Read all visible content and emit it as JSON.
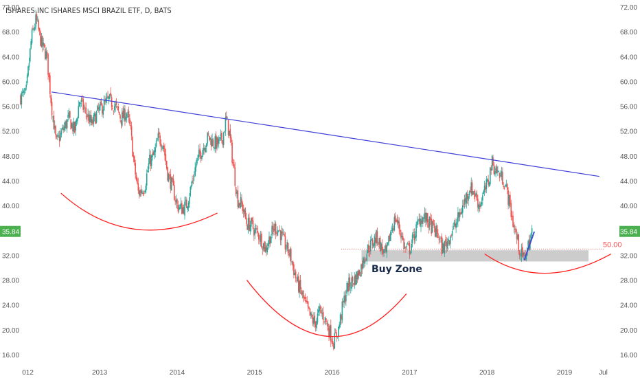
{
  "header": {
    "title": "ISHARES INC ISHARES MSCI BRAZIL ETF, D, BATS"
  },
  "chart_data": {
    "type": "candlestick",
    "title": "ISHARES INC ISHARES MSCI BRAZIL ETF, D, BATS",
    "ylim": [
      15,
      72
    ],
    "y_ticks": [
      "16.00",
      "20.00",
      "24.00",
      "28.00",
      "32.00",
      "36.00",
      "40.00",
      "44.00",
      "48.00",
      "52.00",
      "56.00",
      "60.00",
      "64.00",
      "68.00",
      "72.00"
    ],
    "x_ticks": [
      "012",
      "2013",
      "2014",
      "2015",
      "2016",
      "2017",
      "2018",
      "2019",
      "Jul"
    ],
    "x_tick_pos": [
      2012.0,
      2013.0,
      2014.0,
      2015.0,
      2016.0,
      2017.0,
      2018.0,
      2019.0,
      2019.5
    ],
    "xlim": [
      2011.98,
      2019.62
    ],
    "price_path": [
      [
        2011.98,
        57.5
      ],
      [
        2012.05,
        58
      ],
      [
        2012.12,
        67
      ],
      [
        2012.18,
        70
      ],
      [
        2012.25,
        66
      ],
      [
        2012.32,
        64
      ],
      [
        2012.38,
        56
      ],
      [
        2012.44,
        50
      ],
      [
        2012.52,
        52
      ],
      [
        2012.6,
        54
      ],
      [
        2012.68,
        52
      ],
      [
        2012.74,
        57
      ],
      [
        2012.82,
        55
      ],
      [
        2012.9,
        53
      ],
      [
        2012.97,
        55
      ],
      [
        2013.04,
        56
      ],
      [
        2013.12,
        57
      ],
      [
        2013.2,
        56
      ],
      [
        2013.28,
        54
      ],
      [
        2013.35,
        55
      ],
      [
        2013.4,
        52
      ],
      [
        2013.45,
        46
      ],
      [
        2013.5,
        42
      ],
      [
        2013.58,
        43
      ],
      [
        2013.64,
        47
      ],
      [
        2013.7,
        48
      ],
      [
        2013.76,
        51
      ],
      [
        2013.82,
        50
      ],
      [
        2013.88,
        45
      ],
      [
        2013.94,
        43
      ],
      [
        2014.0,
        40
      ],
      [
        2014.06,
        39.5
      ],
      [
        2014.12,
        40
      ],
      [
        2014.18,
        43
      ],
      [
        2014.25,
        47
      ],
      [
        2014.32,
        49
      ],
      [
        2014.4,
        51
      ],
      [
        2014.48,
        50
      ],
      [
        2014.54,
        50
      ],
      [
        2014.59,
        51
      ],
      [
        2014.63,
        54
      ],
      [
        2014.67,
        52
      ],
      [
        2014.72,
        47
      ],
      [
        2014.78,
        41
      ],
      [
        2014.84,
        40
      ],
      [
        2014.9,
        37
      ],
      [
        2014.95,
        37
      ],
      [
        2015.0,
        36
      ],
      [
        2015.07,
        35
      ],
      [
        2015.14,
        33
      ],
      [
        2015.2,
        35
      ],
      [
        2015.26,
        36.5
      ],
      [
        2015.32,
        36
      ],
      [
        2015.38,
        34
      ],
      [
        2015.46,
        32
      ],
      [
        2015.54,
        28
      ],
      [
        2015.6,
        26
      ],
      [
        2015.66,
        24
      ],
      [
        2015.72,
        22
      ],
      [
        2015.78,
        21
      ],
      [
        2015.84,
        23
      ],
      [
        2015.9,
        22
      ],
      [
        2015.96,
        20
      ],
      [
        2016.02,
        18
      ],
      [
        2016.08,
        20
      ],
      [
        2016.14,
        24
      ],
      [
        2016.2,
        27
      ],
      [
        2016.28,
        28
      ],
      [
        2016.34,
        29
      ],
      [
        2016.4,
        31
      ],
      [
        2016.46,
        33
      ],
      [
        2016.52,
        34
      ],
      [
        2016.58,
        35
      ],
      [
        2016.64,
        33
      ],
      [
        2016.7,
        32
      ],
      [
        2016.76,
        36
      ],
      [
        2016.82,
        38
      ],
      [
        2016.88,
        36
      ],
      [
        2016.94,
        33
      ],
      [
        2017.0,
        33
      ],
      [
        2017.08,
        36
      ],
      [
        2017.14,
        38
      ],
      [
        2017.2,
        38
      ],
      [
        2017.26,
        37
      ],
      [
        2017.32,
        36
      ],
      [
        2017.38,
        35
      ],
      [
        2017.42,
        33
      ],
      [
        2017.48,
        34
      ],
      [
        2017.55,
        36
      ],
      [
        2017.6,
        37
      ],
      [
        2017.66,
        39
      ],
      [
        2017.72,
        41
      ],
      [
        2017.78,
        43
      ],
      [
        2017.84,
        42
      ],
      [
        2017.9,
        40
      ],
      [
        2017.96,
        42
      ],
      [
        2018.02,
        44
      ],
      [
        2018.06,
        47
      ],
      [
        2018.1,
        46
      ],
      [
        2018.16,
        45
      ],
      [
        2018.22,
        44
      ],
      [
        2018.28,
        41
      ],
      [
        2018.34,
        37
      ],
      [
        2018.4,
        34
      ],
      [
        2018.44,
        32
      ],
      [
        2018.48,
        31.5
      ],
      [
        2018.53,
        33.5
      ],
      [
        2018.58,
        35.8
      ]
    ],
    "resistance_line": {
      "from": [
        2012.38,
        58.3
      ],
      "to": [
        2019.45,
        44.7
      ]
    },
    "buy_zone": {
      "label": "Buy Zone",
      "x": [
        2016.38,
        2019.31
      ],
      "y": [
        31.0,
        32.8
      ]
    },
    "level_line": {
      "y": 33.0,
      "x_from": 2016.12,
      "label": "50.00"
    },
    "last_price": "35.84",
    "arcs": [
      {
        "from": [
          2012.5,
          42.0
        ],
        "via": [
          2013.4,
          32.0
        ],
        "to": [
          2014.52,
          38.8
        ]
      },
      {
        "from": [
          2014.9,
          28.0
        ],
        "via": [
          2015.95,
          11.0
        ],
        "to": [
          2016.96,
          25.8
        ]
      },
      {
        "from": [
          2017.97,
          32.2
        ],
        "via": [
          2018.7,
          26.0
        ],
        "to": [
          2019.6,
          32.2
        ]
      }
    ],
    "impulse_line": {
      "from": [
        2018.48,
        31.2
      ],
      "to": [
        2018.61,
        35.8
      ]
    },
    "colors": {
      "up": "#26a69a",
      "down": "#ef5350",
      "resistance": "#3f3fd8",
      "arcs": "#ff2020",
      "zone": "#cccccc",
      "level": "#ff5555",
      "price_tag": "#4caf50",
      "axis_text": "#555555",
      "impulse": "#3f4fcf"
    }
  }
}
